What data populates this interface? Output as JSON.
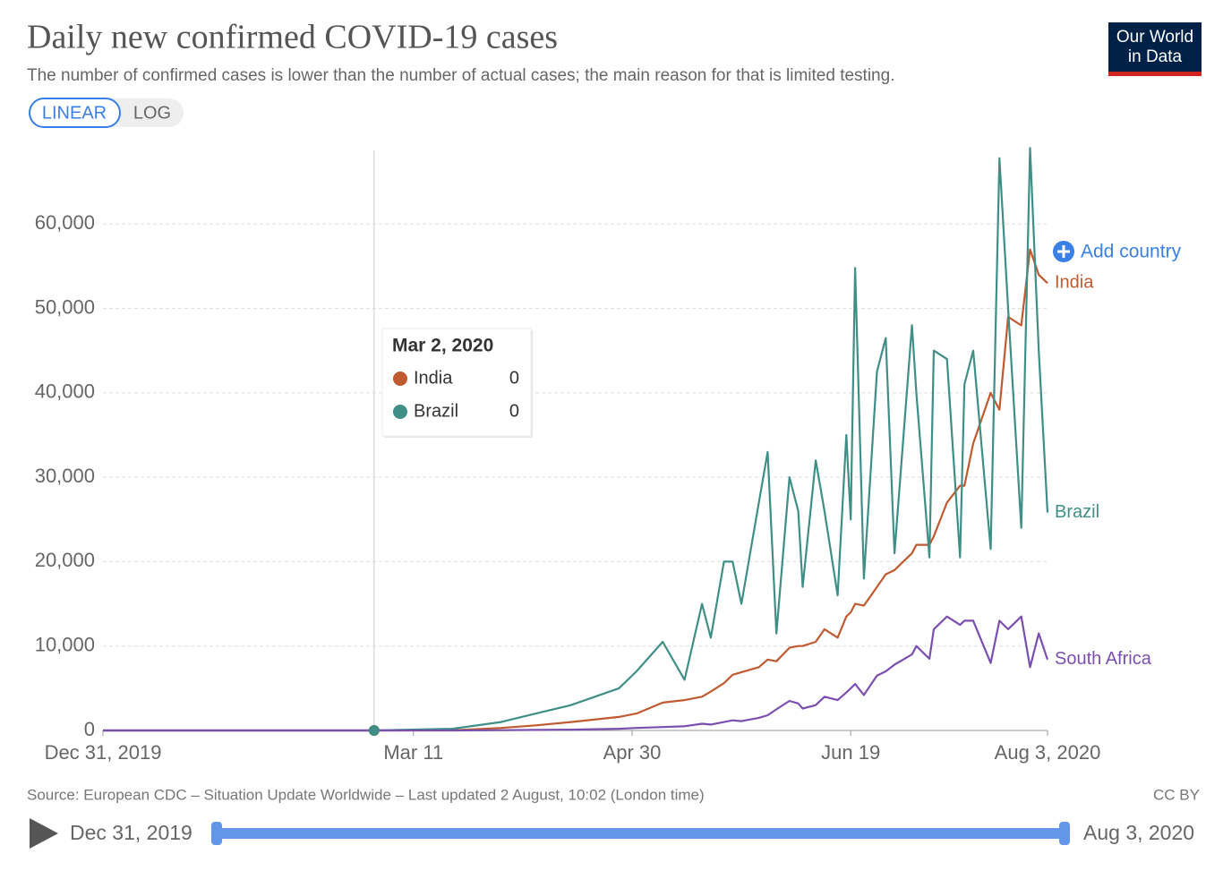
{
  "chart_data": {
    "type": "line",
    "title": "Daily new confirmed COVID-19 cases",
    "subtitle": "The number of confirmed cases is lower than the number of actual cases; the main reason for that is limited testing.",
    "x": [
      "2019-12-31",
      "2020-03-02",
      "2020-03-20",
      "2020-03-31",
      "2020-04-08",
      "2020-04-16",
      "2020-04-27",
      "2020-05-01",
      "2020-05-07",
      "2020-05-12",
      "2020-05-16",
      "2020-05-18",
      "2020-05-21",
      "2020-05-23",
      "2020-05-25",
      "2020-05-29",
      "2020-05-31",
      "2020-06-02",
      "2020-06-05",
      "2020-06-07",
      "2020-06-08",
      "2020-06-11",
      "2020-06-13",
      "2020-06-16",
      "2020-06-18",
      "2020-06-19",
      "2020-06-20",
      "2020-06-22",
      "2020-06-25",
      "2020-06-27",
      "2020-06-29",
      "2020-07-03",
      "2020-07-04",
      "2020-07-07",
      "2020-07-08",
      "2020-07-11",
      "2020-07-14",
      "2020-07-15",
      "2020-07-17",
      "2020-07-21",
      "2020-07-23",
      "2020-07-25",
      "2020-07-28",
      "2020-07-30",
      "2020-08-01",
      "2020-08-03"
    ],
    "series": [
      {
        "name": "India",
        "color": "#c05a30",
        "values": [
          0,
          0,
          20,
          300,
          600,
          1000,
          1600,
          2000,
          3300,
          3600,
          4000,
          4600,
          5600,
          6600,
          6900,
          7500,
          8400,
          8200,
          9800,
          10000,
          10000,
          10500,
          12000,
          11000,
          13500,
          14000,
          15000,
          14800,
          17000,
          18500,
          19000,
          21000,
          22000,
          22000,
          23000,
          27000,
          29000,
          29000,
          34000,
          40000,
          38000,
          49000,
          48000,
          57000,
          54000,
          53000
        ]
      },
      {
        "name": "Brazil",
        "color": "#3f8f87",
        "values": [
          0,
          0,
          200,
          1000,
          2000,
          3000,
          5000,
          7000,
          10500,
          6000,
          15000,
          11000,
          20000,
          20000,
          15000,
          27000,
          33000,
          11500,
          30000,
          26000,
          17000,
          32000,
          26000,
          16000,
          35000,
          25000,
          54800,
          18000,
          42500,
          46500,
          21000,
          48000,
          40000,
          20500,
          45000,
          44000,
          20500,
          41000,
          45000,
          21500,
          67800,
          50000,
          24000,
          69000,
          45000,
          25800
        ]
      },
      {
        "name": "South Africa",
        "color": "#7b4fb0",
        "values": [
          0,
          0,
          0,
          30,
          60,
          100,
          200,
          300,
          400,
          500,
          800,
          700,
          1000,
          1200,
          1100,
          1500,
          1800,
          2500,
          3500,
          3200,
          2600,
          3000,
          4000,
          3600,
          4500,
          5000,
          5500,
          4200,
          6500,
          7000,
          7800,
          9000,
          10000,
          8500,
          12000,
          13500,
          12500,
          13000,
          13000,
          8000,
          13000,
          12000,
          13500,
          7500,
          11500,
          8400
        ]
      }
    ],
    "xlim": [
      "2019-12-31",
      "2020-08-03"
    ],
    "xticks": [
      {
        "value": "2019-12-31",
        "label": "Dec 31, 2019"
      },
      {
        "value": "2020-03-11",
        "label": "Mar 11"
      },
      {
        "value": "2020-04-30",
        "label": "Apr 30"
      },
      {
        "value": "2020-06-19",
        "label": "Jun 19"
      },
      {
        "value": "2020-08-03",
        "label": "Aug 3, 2020"
      }
    ],
    "ylim": [
      0,
      70000
    ],
    "yticks": [
      0,
      {
        "value": 10000,
        "label": "10,000"
      },
      {
        "value": 20000,
        "label": "20,000"
      },
      {
        "value": 30000,
        "label": "30,000"
      },
      {
        "value": 40000,
        "label": "40,000"
      },
      {
        "value": 50000,
        "label": "50,000"
      },
      {
        "value": 60000,
        "label": "60,000"
      }
    ],
    "grid": true,
    "tooltip": {
      "date": "Mar 2, 2020",
      "rows": [
        {
          "name": "India",
          "color": "#c05a30",
          "value": 0
        },
        {
          "name": "Brazil",
          "color": "#3f8f87",
          "value": 0
        }
      ]
    }
  },
  "controls": [
    "LINEAR",
    "LOG"
  ],
  "logo": [
    "Our World",
    "in Data"
  ],
  "add_country": "Add country",
  "source": "Source: European CDC – Situation Update Worldwide – Last updated 2 August, 10:02 (London time)",
  "license": "CC BY",
  "timeline": {
    "start": "Dec 31, 2019",
    "end": "Aug 3, 2020"
  }
}
